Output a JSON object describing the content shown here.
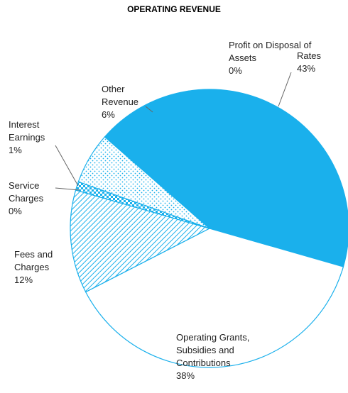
{
  "chart_data": {
    "type": "pie",
    "title": "OPERATING REVENUE",
    "categories": [
      "Rates",
      "Operating Grants, Subsidies and Contributions",
      "Fees and Charges",
      "Service Charges",
      "Interest Earnings",
      "Other Revenue",
      "Profit on Disposal of Assets"
    ],
    "values": [
      43,
      38,
      12,
      0,
      1,
      6,
      0
    ],
    "value_labels": [
      "43%",
      "38%",
      "12%",
      "0%",
      "1%",
      "6%",
      "0%"
    ],
    "color": "#1ab0ec"
  }
}
